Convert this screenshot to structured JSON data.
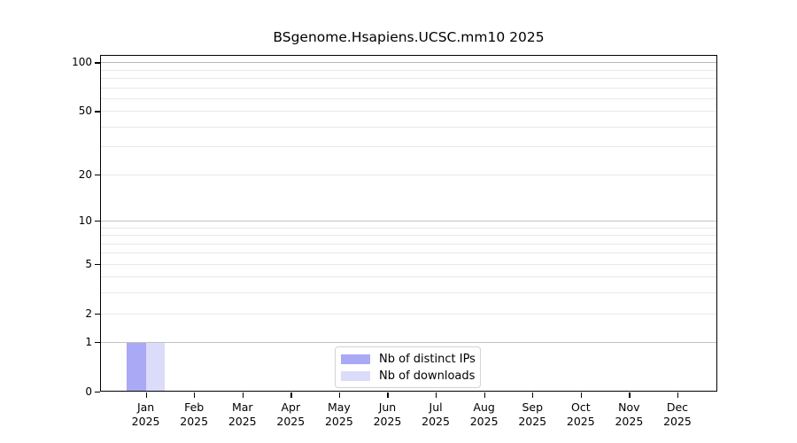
{
  "figure_title": "BSgenome.Hsapiens.UCSC.mm10 2025",
  "chart_data": {
    "type": "bar",
    "title": "BSgenome.Hsapiens.UCSC.mm10 2025",
    "categories": [
      "Jan",
      "Feb",
      "Mar",
      "Apr",
      "May",
      "Jun",
      "Jul",
      "Aug",
      "Sep",
      "Oct",
      "Nov",
      "Dec"
    ],
    "category_year": "2025",
    "series": [
      {
        "name": "Nb of distinct IPs",
        "color": "#a9a9f5",
        "values": [
          1,
          0,
          0,
          0,
          0,
          0,
          0,
          0,
          0,
          0,
          0,
          0
        ]
      },
      {
        "name": "Nb of downloads",
        "color": "#dbdbfa",
        "values": [
          1,
          0,
          0,
          0,
          0,
          0,
          0,
          0,
          0,
          0,
          0,
          0
        ]
      }
    ],
    "xlabel": "",
    "ylabel": "",
    "y_axis": {
      "scale": "log1p",
      "tick_values": [
        0,
        1,
        2,
        5,
        10,
        20,
        50,
        100
      ],
      "range": [
        0,
        111
      ],
      "major_gridlines": [
        1,
        10,
        100
      ],
      "minor_gridlines": [
        2,
        3,
        4,
        5,
        6,
        7,
        8,
        9,
        20,
        30,
        40,
        50,
        60,
        70,
        80,
        90
      ]
    },
    "grid": true,
    "legend": {
      "position": "bottom-center",
      "entries": [
        "Nb of distinct IPs",
        "Nb of downloads"
      ]
    }
  },
  "colors": {
    "gridline_major": "#c3c3c3",
    "gridline_top": "#b9b9b9",
    "gridline_minor": "#e9e9e9",
    "axis": "#000000",
    "legend_border": "#d3d3d3",
    "background": "#ffffff"
  }
}
